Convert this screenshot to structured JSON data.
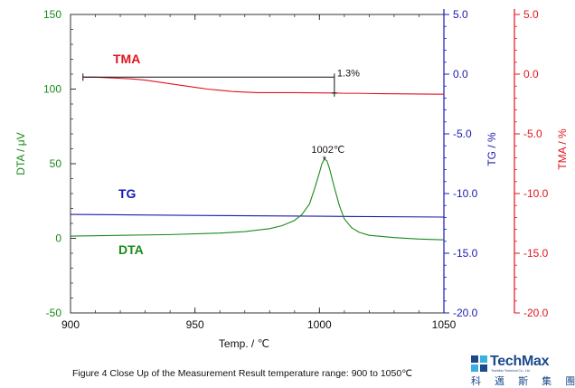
{
  "chart_data": {
    "type": "line",
    "x_axis": {
      "label": "Temp. / ℃",
      "range": [
        900,
        1050
      ],
      "ticks": [
        "900",
        "950",
        "1000",
        "1050"
      ]
    },
    "y_axes": {
      "dta": {
        "label": "DTA / μV",
        "range": [
          -50,
          150
        ],
        "ticks": [
          "150",
          "100",
          "50",
          "0",
          "-50"
        ],
        "color": "#1a8a1a"
      },
      "tg": {
        "label": "TG / %",
        "range": [
          -20,
          5
        ],
        "ticks": [
          "5.0",
          "0.0",
          "-5.0",
          "-10.0",
          "-15.0",
          "-20.0"
        ],
        "color": "#1a1ab0"
      },
      "tma": {
        "label": "TMA / %",
        "range": [
          -20,
          5
        ],
        "ticks": [
          "5.0",
          "0.0",
          "-5.0",
          "-10.0",
          "-15.0",
          "-20.0"
        ],
        "color": "#e0141e"
      }
    },
    "series": [
      {
        "name": "TMA",
        "axis": "tma",
        "color": "#e0141e",
        "x": [
          905,
          910,
          915,
          920,
          925,
          930,
          935,
          940,
          945,
          950,
          955,
          960,
          965,
          970,
          975,
          980,
          985,
          990,
          995,
          1000,
          1005,
          1010,
          1015,
          1020,
          1025,
          1030,
          1035,
          1040,
          1045,
          1050
        ],
        "y": [
          -0.25,
          -0.25,
          -0.3,
          -0.35,
          -0.4,
          -0.5,
          -0.65,
          -0.8,
          -0.95,
          -1.1,
          -1.25,
          -1.35,
          -1.45,
          -1.5,
          -1.55,
          -1.55,
          -1.55,
          -1.55,
          -1.56,
          -1.57,
          -1.58,
          -1.6,
          -1.6,
          -1.62,
          -1.63,
          -1.64,
          -1.65,
          -1.66,
          -1.67,
          -1.68
        ]
      },
      {
        "name": "TG",
        "axis": "tg",
        "color": "#1a1ab0",
        "x": [
          900,
          950,
          1000,
          1050
        ],
        "y": [
          -11.75,
          -11.83,
          -11.9,
          -11.97
        ]
      },
      {
        "name": "DTA",
        "axis": "dta",
        "color": "#1a8a1a",
        "x": [
          900,
          920,
          940,
          960,
          970,
          980,
          985,
          990,
          993,
          996,
          998,
          1000,
          1001,
          1002,
          1003,
          1004,
          1006,
          1008,
          1010,
          1013,
          1016,
          1020,
          1030,
          1040,
          1050
        ],
        "y": [
          1.5,
          2,
          2.5,
          3.5,
          4.5,
          6.5,
          8.5,
          12,
          16,
          23,
          33,
          44,
          50,
          53,
          52,
          47,
          34,
          22,
          13,
          7,
          4,
          2,
          0.5,
          -0.5,
          -1
        ]
      }
    ],
    "annotations": {
      "peak_label": "1002℃",
      "peak": {
        "x": 1002,
        "y": 53
      },
      "delta_label": "1.3%",
      "delta": {
        "x_start": 905,
        "x_end": 1006,
        "y_top": -0.25,
        "y_bottom": -1.58
      }
    }
  },
  "caption": "Figure 4 Close Up of the Measurement Result temperature range: 900 to 1050℃",
  "logo": {
    "name": "TechMax",
    "sub": "TechMax Technical Co., Ltd.",
    "chinese": "科 邁 斯 集 團"
  }
}
